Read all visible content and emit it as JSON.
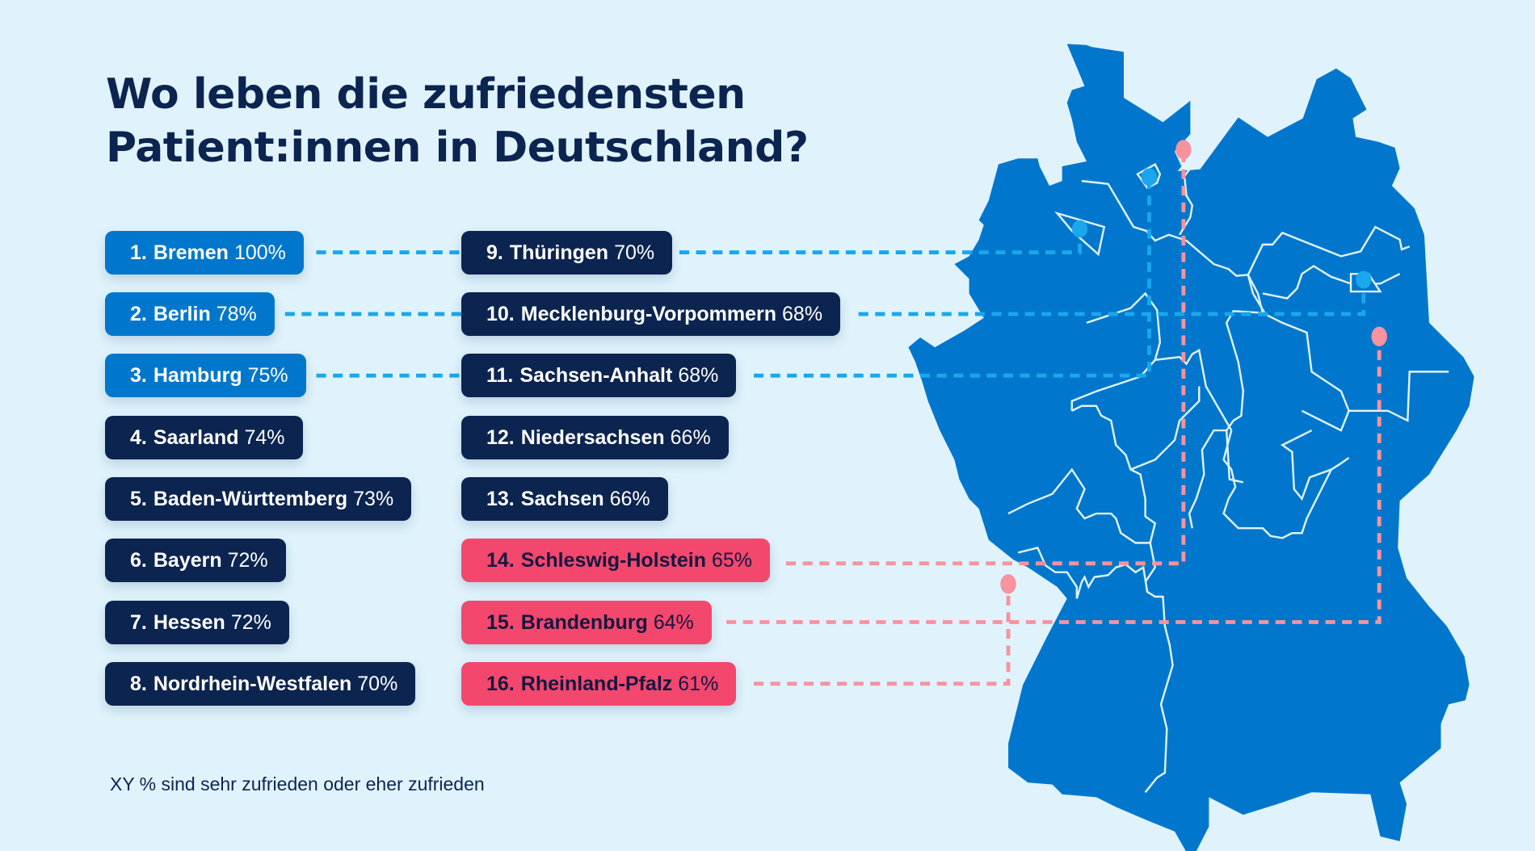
{
  "title": {
    "line1": "Wo leben die zufriedensten",
    "line2": "Patient:innen in Deutschland?"
  },
  "colors": {
    "background": "#e0f3fc",
    "map_fill": "#0077cc",
    "top_tier": "#0077cc",
    "mid_tier": "#0c2450",
    "bottom_tier": "#f4476d",
    "top_marker": "#1aa7ec",
    "bottom_marker": "#f7939e"
  },
  "rankings": [
    {
      "rank": "1.",
      "state": "Bremen",
      "percent": "100%",
      "tier": "top"
    },
    {
      "rank": "2.",
      "state": "Berlin",
      "percent": "78%",
      "tier": "top"
    },
    {
      "rank": "3.",
      "state": "Hamburg",
      "percent": "75%",
      "tier": "top"
    },
    {
      "rank": "4.",
      "state": "Saarland",
      "percent": "74%",
      "tier": "mid"
    },
    {
      "rank": "5.",
      "state": "Baden-Württemberg",
      "percent": "73%",
      "tier": "mid"
    },
    {
      "rank": "6.",
      "state": "Bayern",
      "percent": "72%",
      "tier": "mid"
    },
    {
      "rank": "7.",
      "state": "Hessen",
      "percent": "72%",
      "tier": "mid"
    },
    {
      "rank": "8.",
      "state": "Nordrhein-Westfalen",
      "percent": "70%",
      "tier": "mid"
    },
    {
      "rank": "9.",
      "state": "Thüringen",
      "percent": "70%",
      "tier": "mid"
    },
    {
      "rank": "10.",
      "state": "Mecklenburg-Vorpommern",
      "percent": "68%",
      "tier": "mid"
    },
    {
      "rank": "11.",
      "state": "Sachsen-Anhalt",
      "percent": "68%",
      "tier": "mid"
    },
    {
      "rank": "12.",
      "state": "Niedersachsen",
      "percent": "66%",
      "tier": "mid"
    },
    {
      "rank": "13.",
      "state": "Sachsen",
      "percent": "66%",
      "tier": "mid"
    },
    {
      "rank": "14.",
      "state": "Schleswig-Holstein",
      "percent": "65%",
      "tier": "low"
    },
    {
      "rank": "15.",
      "state": "Brandenburg",
      "percent": "64%",
      "tier": "low"
    },
    {
      "rank": "16.",
      "state": "Rheinland-Pfalz",
      "percent": "61%",
      "tier": "low"
    }
  ],
  "map_markers": [
    {
      "state": "Bremen",
      "tier": "top"
    },
    {
      "state": "Berlin",
      "tier": "top"
    },
    {
      "state": "Hamburg",
      "tier": "top"
    },
    {
      "state": "Schleswig-Holstein",
      "tier": "low"
    },
    {
      "state": "Brandenburg",
      "tier": "low"
    },
    {
      "state": "Rheinland-Pfalz",
      "tier": "low"
    }
  ],
  "footnote": "XY % sind sehr zufrieden oder eher zufrieden"
}
